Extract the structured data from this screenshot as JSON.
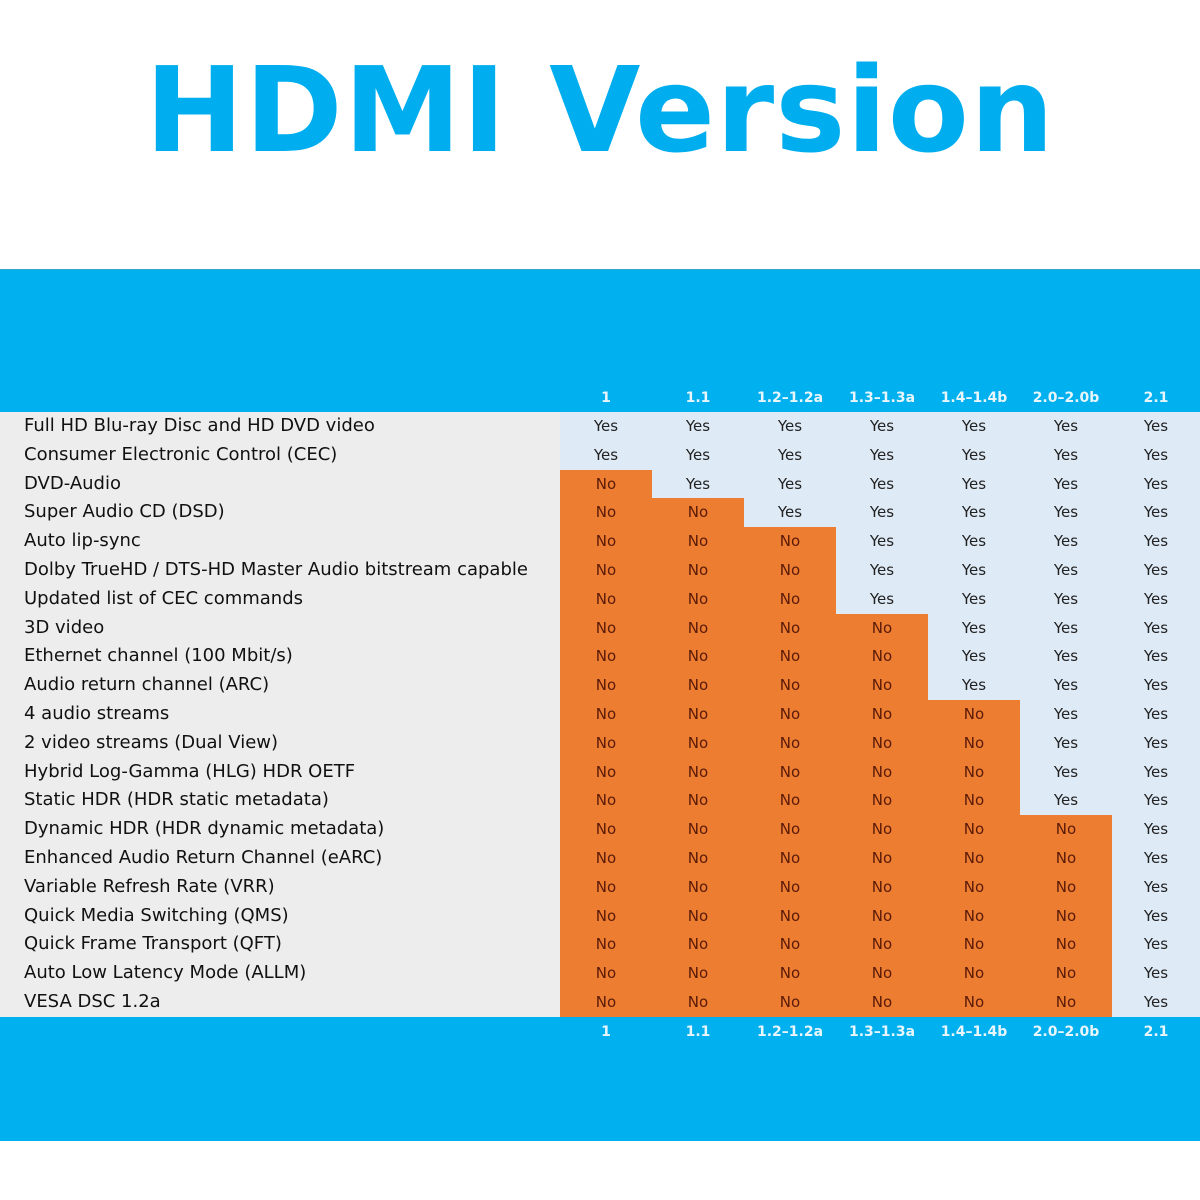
{
  "title": "HDMI Version",
  "colors": {
    "accent": "#00b0ef",
    "title": "#00aeef",
    "no_bg": "#ed7d31",
    "yes_bg": "#deeaf6",
    "label_bg": "#ededed"
  },
  "chart_data": {
    "type": "table",
    "title": "HDMI Version",
    "columns": [
      "1",
      "1.1",
      "1.2–1.2a",
      "1.3–1.3a",
      "1.4–1.4b",
      "2.0–2.0b",
      "2.1"
    ],
    "rows": [
      {
        "feature": "Full HD Blu-ray Disc and HD DVD video",
        "values": [
          "Yes",
          "Yes",
          "Yes",
          "Yes",
          "Yes",
          "Yes",
          "Yes"
        ]
      },
      {
        "feature": "Consumer Electronic Control (CEC)",
        "values": [
          "Yes",
          "Yes",
          "Yes",
          "Yes",
          "Yes",
          "Yes",
          "Yes"
        ]
      },
      {
        "feature": "DVD-Audio",
        "values": [
          "No",
          "Yes",
          "Yes",
          "Yes",
          "Yes",
          "Yes",
          "Yes"
        ]
      },
      {
        "feature": "Super Audio CD (DSD)",
        "values": [
          "No",
          "No",
          "Yes",
          "Yes",
          "Yes",
          "Yes",
          "Yes"
        ]
      },
      {
        "feature": "Auto lip-sync",
        "values": [
          "No",
          "No",
          "No",
          "Yes",
          "Yes",
          "Yes",
          "Yes"
        ]
      },
      {
        "feature": "Dolby TrueHD / DTS-HD Master Audio bitstream capable",
        "values": [
          "No",
          "No",
          "No",
          "Yes",
          "Yes",
          "Yes",
          "Yes"
        ]
      },
      {
        "feature": "Updated list of CEC commands",
        "values": [
          "No",
          "No",
          "No",
          "Yes",
          "Yes",
          "Yes",
          "Yes"
        ]
      },
      {
        "feature": "3D video",
        "values": [
          "No",
          "No",
          "No",
          "No",
          "Yes",
          "Yes",
          "Yes"
        ]
      },
      {
        "feature": "Ethernet channel (100 Mbit/s)",
        "values": [
          "No",
          "No",
          "No",
          "No",
          "Yes",
          "Yes",
          "Yes"
        ]
      },
      {
        "feature": "Audio return channel (ARC)",
        "values": [
          "No",
          "No",
          "No",
          "No",
          "Yes",
          "Yes",
          "Yes"
        ]
      },
      {
        "feature": "4 audio streams",
        "values": [
          "No",
          "No",
          "No",
          "No",
          "No",
          "Yes",
          "Yes"
        ]
      },
      {
        "feature": "2 video streams (Dual View)",
        "values": [
          "No",
          "No",
          "No",
          "No",
          "No",
          "Yes",
          "Yes"
        ]
      },
      {
        "feature": "Hybrid Log-Gamma (HLG) HDR OETF",
        "values": [
          "No",
          "No",
          "No",
          "No",
          "No",
          "Yes",
          "Yes"
        ]
      },
      {
        "feature": "Static HDR (HDR static metadata)",
        "values": [
          "No",
          "No",
          "No",
          "No",
          "No",
          "Yes",
          "Yes"
        ]
      },
      {
        "feature": "Dynamic HDR (HDR dynamic metadata)",
        "values": [
          "No",
          "No",
          "No",
          "No",
          "No",
          "No",
          "Yes"
        ]
      },
      {
        "feature": "Enhanced Audio Return Channel (eARC)",
        "values": [
          "No",
          "No",
          "No",
          "No",
          "No",
          "No",
          "Yes"
        ]
      },
      {
        "feature": "Variable Refresh Rate (VRR)",
        "values": [
          "No",
          "No",
          "No",
          "No",
          "No",
          "No",
          "Yes"
        ]
      },
      {
        "feature": "Quick Media Switching (QMS)",
        "values": [
          "No",
          "No",
          "No",
          "No",
          "No",
          "No",
          "Yes"
        ]
      },
      {
        "feature": "Quick Frame Transport (QFT)",
        "values": [
          "No",
          "No",
          "No",
          "No",
          "No",
          "No",
          "Yes"
        ]
      },
      {
        "feature": "Auto Low Latency Mode (ALLM)",
        "values": [
          "No",
          "No",
          "No",
          "No",
          "No",
          "No",
          "Yes"
        ]
      },
      {
        "feature": "VESA DSC 1.2a",
        "values": [
          "No",
          "No",
          "No",
          "No",
          "No",
          "No",
          "Yes"
        ]
      }
    ]
  }
}
